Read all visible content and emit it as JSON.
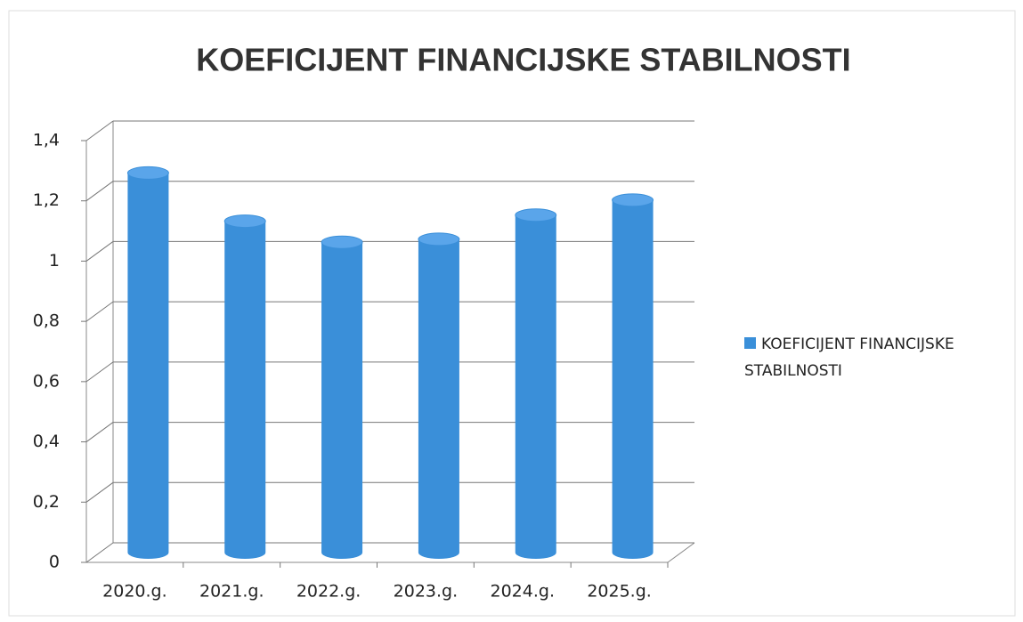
{
  "chart_data": {
    "type": "bar3d",
    "title": "KOEFICIJENT FINANCIJSKE STABILNOSTI",
    "categories": [
      "2020.g.",
      "2021.g.",
      "2022.g.",
      "2023.g.",
      "2024.g.",
      "2025.g."
    ],
    "series": [
      {
        "name": "KOEFICIJENT FINANCIJSKE STABILNOSTI",
        "color": "#3a8fd9",
        "values": [
          1.26,
          1.1,
          1.03,
          1.04,
          1.12,
          1.17
        ]
      }
    ],
    "ylim": [
      0,
      1.4
    ],
    "yticks": [
      0,
      {
        "value": 0.2,
        "label": "0,2"
      },
      {
        "value": 0.4,
        "label": "0,4"
      },
      {
        "value": 0.6,
        "label": "0,6"
      },
      {
        "value": 0.8,
        "label": "0,8"
      },
      1,
      {
        "value": 1.2,
        "label": "1,2"
      },
      {
        "value": 1.4,
        "label": "1,4"
      }
    ],
    "grid": true,
    "legend": "right"
  }
}
